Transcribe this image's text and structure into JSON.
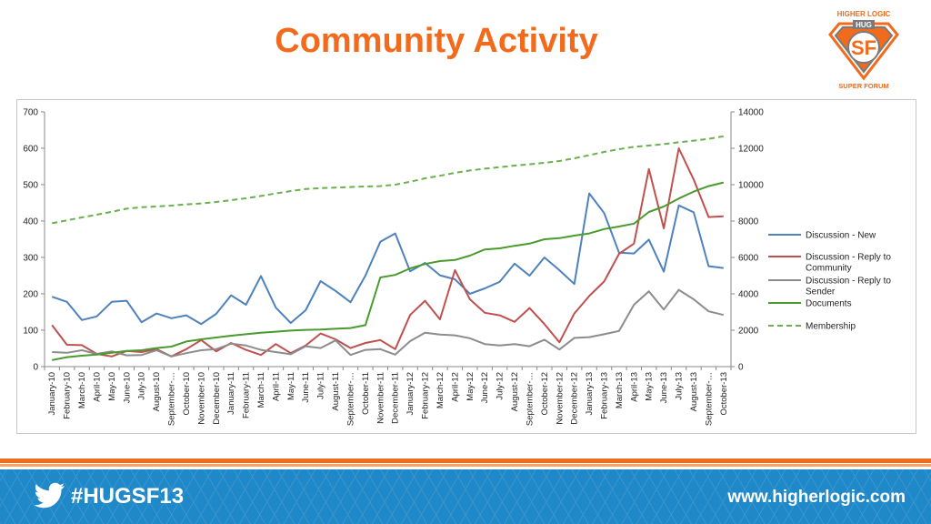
{
  "slide": {
    "title": "Community Activity",
    "hashtag": "#HUGSF13",
    "website": "www.higherlogic.com"
  },
  "logo": {
    "top_text": "HIGHER LOGIC",
    "badge_text": "HUG",
    "center_text": "SF",
    "bottom_text": "SUPER FORUM"
  },
  "colors": {
    "title": "#f26b1d",
    "footer": "#1e88c8",
    "discussion_new": "#4f81bd",
    "reply_community": "#c0504d",
    "reply_sender": "#8c8c8c",
    "documents": "#4a9a2e",
    "membership": "#6ab04c"
  },
  "chart_data": {
    "type": "line",
    "categories": [
      "January-10",
      "February-10",
      "March-10",
      "April-10",
      "May-10",
      "June-10",
      "July-10",
      "August-10",
      "September-10",
      "October-10",
      "November-10",
      "December-10",
      "January-11",
      "February-11",
      "March-11",
      "April-11",
      "May-11",
      "June-11",
      "July-11",
      "August-11",
      "September-11",
      "October-11",
      "November-11",
      "December-11",
      "January-12",
      "February-12",
      "March-12",
      "April-12",
      "May-12",
      "June-12",
      "July-12",
      "August-12",
      "September-12",
      "October-12",
      "November-12",
      "December-12",
      "January-13",
      "February-13",
      "March-13",
      "April-13",
      "May-13",
      "June-13",
      "July-13",
      "August-13",
      "September-13",
      "October-13"
    ],
    "category_labels": [
      "January-10",
      "February-10",
      "March-10",
      "April-10",
      "May-10",
      "June-10",
      "July-10",
      "August-10",
      "September-…",
      "October-10",
      "November-10",
      "December-10",
      "January-11",
      "February-11",
      "March-11",
      "April-11",
      "May-11",
      "June-11",
      "July-11",
      "August-11",
      "September-…",
      "October-11",
      "November-11",
      "December-11",
      "January-12",
      "February-12",
      "March-12",
      "April-12",
      "May-12",
      "June-12",
      "July-12",
      "August-12",
      "September-…",
      "October-12",
      "November-12",
      "December-12",
      "January-13",
      "February-13",
      "March-13",
      "April-13",
      "May-13",
      "June-13",
      "July-13",
      "August-13",
      "September-…",
      "October-13"
    ],
    "y_left": {
      "min": 0,
      "max": 700,
      "step": 100,
      "ticks": [
        "0",
        "100",
        "200",
        "300",
        "400",
        "500",
        "600",
        "700"
      ]
    },
    "y_right": {
      "min": 0,
      "max": 14000,
      "step": 2000,
      "ticks": [
        "0",
        "2000",
        "4000",
        "6000",
        "8000",
        "10000",
        "12000",
        "14000"
      ]
    },
    "grid": false,
    "legend_position": "right",
    "series": [
      {
        "name": "Discussion - New",
        "axis": "left",
        "style": "solid",
        "color": "#4f81bd",
        "values": [
          192,
          178,
          128,
          138,
          178,
          181,
          122,
          146,
          133,
          141,
          117,
          145,
          196,
          170,
          249,
          162,
          120,
          155,
          235,
          208,
          177,
          250,
          343,
          366,
          262,
          285,
          251,
          240,
          200,
          215,
          233,
          283,
          250,
          300,
          265,
          227,
          476,
          422,
          313,
          311,
          349,
          261,
          443,
          424,
          276,
          271
        ]
      },
      {
        "name": "Discussion - Reply to Community",
        "axis": "left",
        "style": "solid",
        "color": "#c0504d",
        "values": [
          114,
          60,
          59,
          35,
          28,
          43,
          40,
          48,
          28,
          48,
          73,
          42,
          65,
          46,
          32,
          62,
          37,
          58,
          91,
          75,
          51,
          65,
          73,
          48,
          142,
          181,
          130,
          265,
          185,
          148,
          141,
          123,
          161,
          117,
          67,
          146,
          194,
          234,
          310,
          338,
          543,
          380,
          600,
          514,
          411,
          413
        ]
      },
      {
        "name": "Discussion - Reply to Sender",
        "axis": "left",
        "style": "solid",
        "color": "#8c8c8c",
        "values": [
          40,
          38,
          45,
          35,
          42,
          31,
          32,
          45,
          28,
          37,
          45,
          48,
          63,
          58,
          46,
          40,
          34,
          56,
          51,
          72,
          32,
          46,
          48,
          33,
          70,
          93,
          88,
          86,
          78,
          62,
          58,
          62,
          56,
          74,
          47,
          79,
          81,
          89,
          98,
          170,
          207,
          157,
          211,
          185,
          152,
          142
        ]
      },
      {
        "name": "Documents",
        "axis": "left",
        "style": "solid",
        "color": "#4a9a2e",
        "values": [
          18,
          26,
          30,
          33,
          38,
          43,
          45,
          51,
          55,
          69,
          75,
          80,
          85,
          89,
          93,
          96,
          99,
          101,
          102,
          104,
          106,
          114,
          245,
          252,
          270,
          282,
          290,
          293,
          305,
          322,
          325,
          332,
          338,
          350,
          353,
          360,
          366,
          378,
          385,
          393,
          425,
          440,
          462,
          481,
          496,
          506
        ]
      },
      {
        "name": "Membership",
        "axis": "right",
        "style": "dashed",
        "color": "#6ab04c",
        "values": [
          7880,
          8040,
          8200,
          8350,
          8510,
          8680,
          8760,
          8800,
          8850,
          8920,
          8970,
          9050,
          9150,
          9250,
          9380,
          9520,
          9650,
          9760,
          9810,
          9840,
          9870,
          9900,
          9920,
          10000,
          10160,
          10350,
          10490,
          10650,
          10780,
          10880,
          10960,
          11050,
          11120,
          11200,
          11300,
          11450,
          11620,
          11800,
          11950,
          12080,
          12150,
          12230,
          12330,
          12420,
          12520,
          12660
        ]
      }
    ]
  }
}
